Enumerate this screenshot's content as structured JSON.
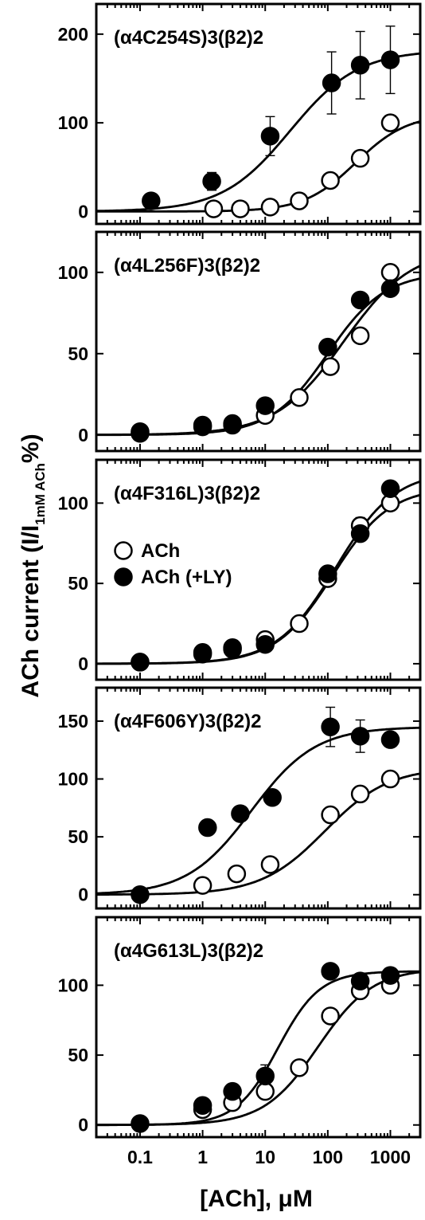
{
  "chart_data": [
    {
      "type": "scatter",
      "title": "(α4C254S)3(β2)2",
      "ylim": [
        -5,
        225
      ],
      "yticks": [
        0,
        100,
        200
      ],
      "series": [
        {
          "name": "ACh",
          "fill": "#ffffff",
          "points": [
            [
              1.5,
              3
            ],
            [
              4,
              3
            ],
            [
              12,
              5
            ],
            [
              35,
              12
            ],
            [
              110,
              35
            ],
            [
              330,
              60
            ],
            [
              1000,
              100
            ]
          ],
          "errors": [],
          "fit": {
            "bottom": 0,
            "top": 110,
            "ec50": 280,
            "hill": 1.05
          }
        },
        {
          "name": "ACh (+LY)",
          "fill": "#000000",
          "points": [
            [
              0.15,
              12
            ],
            [
              1.4,
              34
            ],
            [
              12,
              85
            ],
            [
              115,
              145
            ],
            [
              330,
              165
            ],
            [
              1000,
              171
            ]
          ],
          "errors": [
            [
              1.4,
              10
            ],
            [
              12,
              22
            ],
            [
              115,
              35
            ],
            [
              330,
              38
            ],
            [
              1000,
              38
            ]
          ],
          "fit": {
            "bottom": 0,
            "top": 182,
            "ec50": 25,
            "hill": 0.8
          }
        }
      ]
    },
    {
      "type": "scatter",
      "title": "(α4L256F)3(β2)2",
      "ylim": [
        -5,
        120
      ],
      "yticks": [
        0,
        50,
        100
      ],
      "series": [
        {
          "name": "ACh",
          "fill": "#ffffff",
          "points": [
            [
              0.1,
              2
            ],
            [
              1,
              6
            ],
            [
              3,
              7
            ],
            [
              10,
              12
            ],
            [
              35,
              23
            ],
            [
              110,
              42
            ],
            [
              330,
              61
            ],
            [
              1000,
              100
            ]
          ],
          "errors": [],
          "fit": {
            "bottom": 0,
            "top": 115,
            "ec50": 180,
            "hill": 0.8
          }
        },
        {
          "name": "ACh (+LY)",
          "fill": "#000000",
          "points": [
            [
              0.1,
              1
            ],
            [
              1,
              5
            ],
            [
              3,
              6
            ],
            [
              10,
              18
            ],
            [
              100,
              54
            ],
            [
              330,
              83
            ],
            [
              1000,
              90
            ]
          ],
          "errors": [],
          "fit": {
            "bottom": 0,
            "top": 100,
            "ec50": 100,
            "hill": 0.95
          }
        }
      ]
    },
    {
      "type": "scatter",
      "title": "(α4F316L)3(β2)2",
      "ylim": [
        -5,
        122
      ],
      "yticks": [
        0,
        50,
        100
      ],
      "legend": [
        {
          "label": "ACh",
          "fill": "#ffffff"
        },
        {
          "label": "ACh (+LY)",
          "fill": "#000000"
        }
      ],
      "series": [
        {
          "name": "ACh",
          "fill": "#ffffff",
          "points": [
            [
              0.1,
              1
            ],
            [
              1,
              7
            ],
            [
              3,
              10
            ],
            [
              10,
              15
            ],
            [
              35,
              25
            ],
            [
              100,
              53
            ],
            [
              330,
              86
            ],
            [
              1000,
              100
            ]
          ],
          "errors": [
            [
              330,
              5
            ]
          ],
          "fit": {
            "bottom": 0,
            "top": 110,
            "ec50": 120,
            "hill": 0.95
          }
        },
        {
          "name": "ACh (+LY)",
          "fill": "#000000",
          "points": [
            [
              0.1,
              1
            ],
            [
              1,
              6
            ],
            [
              3,
              9
            ],
            [
              10,
              12
            ],
            [
              100,
              56
            ],
            [
              330,
              81
            ],
            [
              1000,
              109
            ]
          ],
          "errors": [],
          "fit": {
            "bottom": 0,
            "top": 120,
            "ec50": 135,
            "hill": 0.92
          }
        }
      ]
    },
    {
      "type": "scatter",
      "title": "(α4F606Y)3(β2)2",
      "ylim": [
        -5,
        172
      ],
      "yticks": [
        0,
        50,
        100,
        150
      ],
      "series": [
        {
          "name": "ACh",
          "fill": "#ffffff",
          "points": [
            [
              1,
              8
            ],
            [
              3.5,
              18
            ],
            [
              12,
              26
            ],
            [
              110,
              69
            ],
            [
              330,
              87
            ],
            [
              1000,
              100
            ]
          ],
          "errors": [],
          "fit": {
            "bottom": 0,
            "top": 110,
            "ec50": 90,
            "hill": 0.85
          }
        },
        {
          "name": "ACh (+LY)",
          "fill": "#000000",
          "points": [
            [
              0.1,
              0
            ],
            [
              1.2,
              58
            ],
            [
              4,
              70
            ],
            [
              13,
              84
            ],
            [
              110,
              145
            ],
            [
              330,
              137
            ],
            [
              1000,
              134
            ]
          ],
          "errors": [
            [
              110,
              17
            ],
            [
              330,
              14
            ]
          ],
          "fit": {
            "bottom": 0,
            "top": 145,
            "ec50": 6,
            "hill": 0.85
          }
        }
      ]
    },
    {
      "type": "scatter",
      "title": "(α4G613L)3(β2)2",
      "ylim": [
        -3,
        143
      ],
      "yticks": [
        0,
        50,
        100
      ],
      "series": [
        {
          "name": "ACh",
          "fill": "#ffffff",
          "points": [
            [
              1,
              11
            ],
            [
              3,
              16
            ],
            [
              10,
              24
            ],
            [
              35,
              41
            ],
            [
              110,
              78
            ],
            [
              330,
              96
            ],
            [
              1000,
              100
            ]
          ],
          "errors": [],
          "fit": {
            "bottom": 0,
            "top": 112,
            "ec50": 70,
            "hill": 1.0
          }
        },
        {
          "name": "ACh (+LY)",
          "fill": "#000000",
          "points": [
            [
              0.1,
              1
            ],
            [
              1,
              14
            ],
            [
              3,
              24
            ],
            [
              10,
              35
            ],
            [
              110,
              110
            ],
            [
              330,
              103
            ],
            [
              1000,
              107
            ]
          ],
          "errors": [
            [
              10,
              8
            ]
          ],
          "fit": {
            "bottom": 0,
            "top": 110,
            "ec50": 16,
            "hill": 1.3
          }
        }
      ]
    }
  ],
  "axes": {
    "xlabel": "[ACh], μM",
    "ylabel_main": "ACh current (I/I",
    "ylabel_sub": "1mM ACh",
    "ylabel_end": "%)",
    "x_scale": "log",
    "xlim": [
      0.02,
      3000
    ],
    "xticks": [
      0.1,
      1,
      10,
      100,
      1000
    ],
    "xtick_labels": [
      "0.1",
      "1",
      "10",
      "100",
      "1000"
    ]
  }
}
